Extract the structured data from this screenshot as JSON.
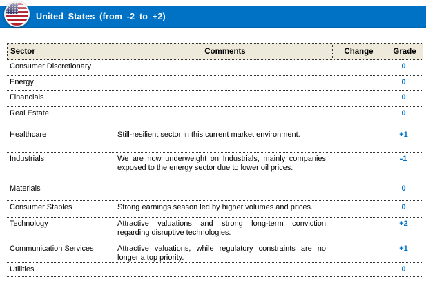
{
  "header": {
    "title": "United States (from -2 to +2)",
    "flag_icon": "us-flag-icon"
  },
  "colors": {
    "title_bar_blue": "#0072C6",
    "grade_blue": "#0072C6",
    "header_row_beige": "#EDEADB",
    "flag_red": "#B22234",
    "flag_canton_blue": "#3C3B6E"
  },
  "table": {
    "columns": [
      "Sector",
      "Comments",
      "Change",
      "Grade"
    ],
    "rows": [
      {
        "sector": "Consumer Discretionary",
        "comment": "",
        "change": "",
        "grade": "0"
      },
      {
        "sector": "Energy",
        "comment": "",
        "change": "",
        "grade": "0"
      },
      {
        "sector": "Financials",
        "comment": "",
        "change": "",
        "grade": "0"
      },
      {
        "sector": "Real Estate",
        "comment": "",
        "change": "",
        "grade": "0"
      },
      {
        "sector": "Healthcare",
        "comment": "Still-resilient sector in this current market environment.",
        "change": "",
        "grade": "+1"
      },
      {
        "sector": "Industrials",
        "comment": "We are now underweight on Industrials, mainly companies exposed to the energy sector due to lower oil prices.",
        "change": "",
        "grade": "-1"
      },
      {
        "sector": "Materials",
        "comment": "",
        "change": "",
        "grade": "0"
      },
      {
        "sector": "Consumer Staples",
        "comment": "Strong earnings season led by higher volumes and prices.",
        "change": "",
        "grade": "0"
      },
      {
        "sector": "Technology",
        "comment": "Attractive valuations and strong long-term conviction regarding disruptive technologies.",
        "change": "",
        "grade": "+2"
      },
      {
        "sector": "Communication Services",
        "comment": "Attractive valuations, while regulatory constraints are no longer a top priority.",
        "change": "",
        "grade": "+1"
      },
      {
        "sector": "Utilities",
        "comment": "",
        "change": "",
        "grade": "0"
      }
    ]
  }
}
